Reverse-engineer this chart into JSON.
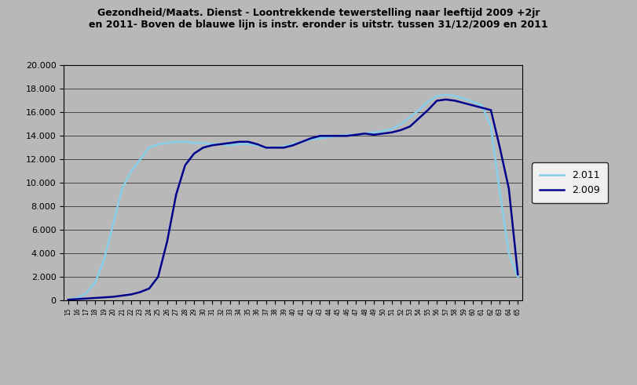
{
  "title_line1": "Gezondheid/Maats. Dienst - Loontrekkende tewerstelling naar leeftijd 2009 +2jr",
  "title_line2": "en 2011- Boven de blauwe lijn is instr. eronder is uitstr. tussen 31/12/2009 en 2011",
  "legend_2009": "2.009",
  "legend_2011": "2.011",
  "color_2009": "#00008B",
  "color_2011": "#87CEEB",
  "background_color": "#B8B8B8",
  "plot_bg_color": "#B8B8B8",
  "ylim": [
    0,
    20000
  ],
  "yticks": [
    0,
    2000,
    4000,
    6000,
    8000,
    10000,
    12000,
    14000,
    16000,
    18000,
    20000
  ],
  "ytick_labels": [
    "0",
    "2.000",
    "4.000",
    "6.000",
    "8.000",
    "10.000",
    "12.000",
    "14.000",
    "16.000",
    "18.000",
    "20.000"
  ],
  "ages": [
    "15",
    "16",
    "17",
    "18",
    "19",
    "20",
    "21",
    "22",
    "23",
    "24",
    "25",
    "26",
    "27",
    "28",
    "29",
    "30",
    "31",
    "32",
    "33",
    "34",
    "35",
    "36",
    "37",
    "38",
    "39",
    "40",
    "41",
    "42",
    "43",
    "44",
    "45",
    "46",
    "47",
    "48",
    "49",
    "50",
    "51",
    "52",
    "53",
    "54",
    "55",
    "56",
    "57",
    "58",
    "59",
    "60",
    "61",
    "62",
    "63",
    "64",
    "65"
  ],
  "values_2009": [
    50,
    100,
    150,
    200,
    250,
    300,
    400,
    500,
    700,
    1000,
    2000,
    5000,
    9000,
    11500,
    12500,
    13000,
    13200,
    13300,
    13400,
    13500,
    13500,
    13300,
    13000,
    13000,
    13000,
    13200,
    13500,
    13800,
    14000,
    14000,
    14000,
    14000,
    14100,
    14200,
    14100,
    14200,
    14300,
    14500,
    14800,
    15500,
    16200,
    17000,
    17100,
    17000,
    16800,
    16600,
    16400,
    16200,
    13000,
    9500,
    2200
  ],
  "values_2011": [
    50,
    200,
    600,
    1500,
    3500,
    6500,
    9500,
    11000,
    12000,
    13000,
    13300,
    13400,
    13500,
    13500,
    13400,
    13400,
    13300,
    13300,
    13200,
    13300,
    13300,
    13200,
    13000,
    13000,
    13100,
    13300,
    13500,
    13700,
    13800,
    13900,
    14000,
    14100,
    14100,
    14200,
    14300,
    14400,
    14600,
    15000,
    15600,
    16200,
    16900,
    17400,
    17500,
    17400,
    17200,
    16900,
    16600,
    14800,
    9200,
    4000,
    2000
  ]
}
